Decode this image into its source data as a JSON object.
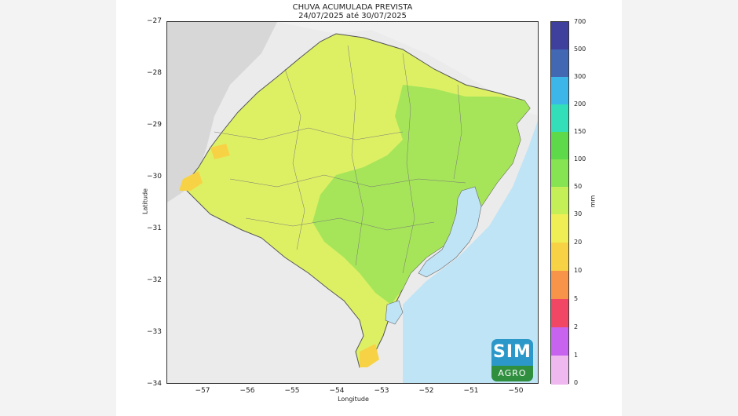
{
  "chart": {
    "title_line1": "CHUVA ACUMULADA PREVISTA",
    "title_line2": "24/07/2025 até 30/07/2025",
    "xlabel": "Longitude",
    "ylabel": "Latitude",
    "x_ticks": [
      "−57",
      "−56",
      "−55",
      "−54",
      "−53",
      "−52",
      "−51",
      "−50"
    ],
    "y_ticks": [
      "−27",
      "−28",
      "−29",
      "−30",
      "−31",
      "−32",
      "−33",
      "−34"
    ]
  },
  "colorbar": {
    "unit": "mm",
    "labels": [
      "700",
      "500",
      "300",
      "200",
      "150",
      "100",
      "50",
      "30",
      "20",
      "10",
      "5",
      "2",
      "1",
      "0"
    ],
    "colors": [
      "#3f3f9e",
      "#4267b3",
      "#3cb5e9",
      "#33dfb8",
      "#5dd94a",
      "#86e352",
      "#c4ef56",
      "#efef55",
      "#f8d245",
      "#f7944a",
      "#f24764",
      "#c863f0",
      "#efb9ef",
      "#ffffff"
    ]
  },
  "logo": {
    "name": "SIM AGRO",
    "top_text": "SIM",
    "bottom_text": "AGRO"
  },
  "colors": {
    "ocean": "#bfe4f6",
    "neighbor_land": "#d7d7d7",
    "uruguay_land": "#ebebeb",
    "border": "#444444"
  }
}
